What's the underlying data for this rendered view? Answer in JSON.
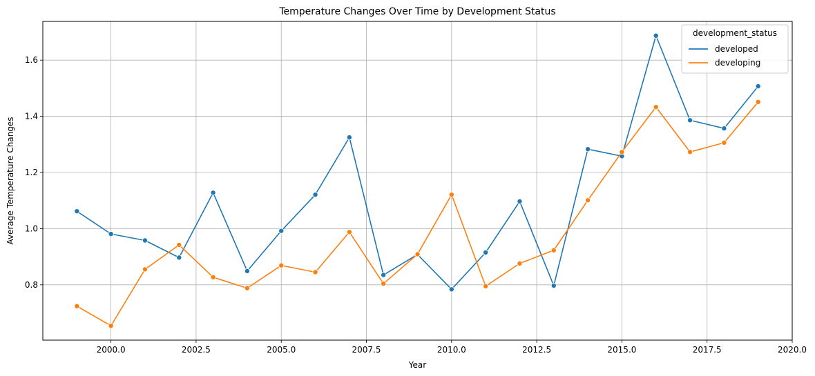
{
  "chart_data": {
    "type": "line",
    "title": "Temperature Changes Over Time by Development Status",
    "xlabel": "Year",
    "ylabel": "Average Temperature Changes",
    "x": [
      1999,
      2000,
      2001,
      2002,
      2003,
      2004,
      2005,
      2006,
      2007,
      2008,
      2009,
      2010,
      2011,
      2012,
      2013,
      2014,
      2015,
      2016,
      2017,
      2018,
      2019
    ],
    "series": [
      {
        "name": "developed",
        "color": "#1f77b4",
        "values": [
          1.062,
          0.981,
          0.958,
          0.897,
          1.128,
          0.849,
          0.992,
          1.121,
          1.325,
          0.835,
          0.908,
          0.784,
          0.915,
          1.097,
          0.797,
          1.283,
          1.258,
          1.687,
          1.386,
          1.357,
          1.507
        ]
      },
      {
        "name": "developing",
        "color": "#ff7f0e",
        "values": [
          0.724,
          0.654,
          0.855,
          0.942,
          0.827,
          0.788,
          0.869,
          0.845,
          0.988,
          0.804,
          0.909,
          1.121,
          0.795,
          0.876,
          0.923,
          1.101,
          1.273,
          1.433,
          1.273,
          1.306,
          1.451
        ]
      }
    ],
    "xlim": [
      1998.0,
      2020.0
    ],
    "ylim": [
      0.603,
      1.738
    ],
    "xticks": [
      2000.0,
      2002.5,
      2005.0,
      2007.5,
      2010.0,
      2012.5,
      2015.0,
      2017.5,
      2020.0
    ],
    "xtick_labels": [
      "2000.0",
      "2002.5",
      "2005.0",
      "2007.5",
      "2010.0",
      "2012.5",
      "2015.0",
      "2017.5",
      "2020.0"
    ],
    "yticks": [
      0.8,
      1.0,
      1.2,
      1.4,
      1.6
    ],
    "ytick_labels": [
      "0.8",
      "1.0",
      "1.2",
      "1.4",
      "1.6"
    ],
    "grid": true,
    "legend": {
      "title": "development_status",
      "position": "top-right"
    }
  }
}
